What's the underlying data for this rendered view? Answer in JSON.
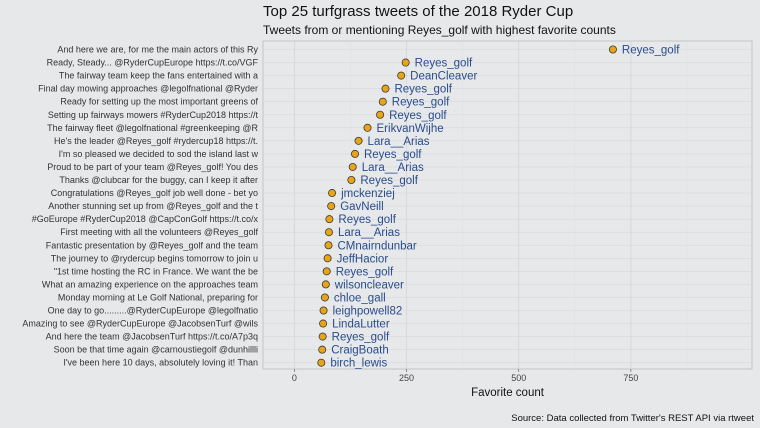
{
  "chart_data": {
    "type": "scatter",
    "title": "Top 25 turfgrass tweets of the 2018 Ryder Cup",
    "subtitle": "Tweets from or mentioning Reyes_golf with highest favorite counts",
    "xlabel": "Favorite count",
    "ylabel": "",
    "caption": "Source: Data collected from Twitter's REST API via rtweet",
    "xlim": [
      -70,
      1020
    ],
    "xticks": [
      0,
      250,
      500,
      750
    ],
    "grid": true,
    "point_color": "#e8a317",
    "label_color": "#2b4c8c",
    "points": [
      {
        "tweet": "And here we are, for me the main actors of this Ry",
        "user": "Reyes_golf",
        "favorites": 710
      },
      {
        "tweet": "Ready, Steady... @RyderCupEurope https://t.co/VGF",
        "user": "Reyes_golf",
        "favorites": 248
      },
      {
        "tweet": "The fairway team keep the fans entertained with a",
        "user": "DeanCleaver",
        "favorites": 238
      },
      {
        "tweet": "Final day mowing approaches @legolfnational @Ryder",
        "user": "Reyes_golf",
        "favorites": 203
      },
      {
        "tweet": "Ready for setting up the most important greens of",
        "user": "Reyes_golf",
        "favorites": 197
      },
      {
        "tweet": "Setting up fairways mowers #RyderCup2018 https://t",
        "user": "Reyes_golf",
        "favorites": 191
      },
      {
        "tweet": "The fairway fleet @legolfnational #greenkeeping @R",
        "user": "ErikvanWijhe",
        "favorites": 163
      },
      {
        "tweet": "He's the leader @Reyes_golf #rydercup18 https://t.",
        "user": "Lara__Arias",
        "favorites": 143
      },
      {
        "tweet": "I'm so pleased we decided to sod the island last w",
        "user": "Reyes_golf",
        "favorites": 135
      },
      {
        "tweet": "Proud to be part of your team @Reyes_golf! You des",
        "user": "Lara__Arias",
        "favorites": 130
      },
      {
        "tweet": "Thanks @clubcar for the buggy, can I keep it after",
        "user": "Reyes_golf",
        "favorites": 127
      },
      {
        "tweet": "Congratulations @Reyes_golf job well done - bet yo",
        "user": "jmckenziej",
        "favorites": 84
      },
      {
        "tweet": "Another stunning set up from @Reyes_golf and the t",
        "user": "GavNeill",
        "favorites": 82
      },
      {
        "tweet": "#GoEurope #RyderCup2018 @CapConGolf https://t.co/x",
        "user": "Reyes_golf",
        "favorites": 78
      },
      {
        "tweet": "First meeting with all the volunteers @Reyes_golf",
        "user": "Lara__Arias",
        "favorites": 77
      },
      {
        "tweet": "Fantastic presentation by @Reyes_golf and the team",
        "user": "CMnairndunbar",
        "favorites": 76
      },
      {
        "tweet": "The journey to @rydercup begins tomorrow to join u",
        "user": "JeffHacior",
        "favorites": 74
      },
      {
        "tweet": "\"1st time hosting the RC in France. We want the be",
        "user": "Reyes_golf",
        "favorites": 72
      },
      {
        "tweet": "What an amazing experience on the approaches team",
        "user": "wilsoncleaver",
        "favorites": 70
      },
      {
        "tweet": "Monday morning at Le Golf National, preparing for",
        "user": "chloe_gall",
        "favorites": 68
      },
      {
        "tweet": "One day to go.........@RyderCupEurope @legolfnatio",
        "user": "leighpowell82",
        "favorites": 65
      },
      {
        "tweet": "Amazing to see @RyderCupEurope @JacobsenTurf @wils",
        "user": "LindaLutter",
        "favorites": 64
      },
      {
        "tweet": "And here the team @JacobsenTurf https://t.co/A7p3q",
        "user": "Reyes_golf",
        "favorites": 63
      },
      {
        "tweet": "Soon be that time again @carnoustiegolf @dunhillli",
        "user": "CraigBoath",
        "favorites": 62
      },
      {
        "tweet": "I've been here 10 days, absolutely loving it! Than",
        "user": "birch_lewis",
        "favorites": 60
      }
    ]
  }
}
